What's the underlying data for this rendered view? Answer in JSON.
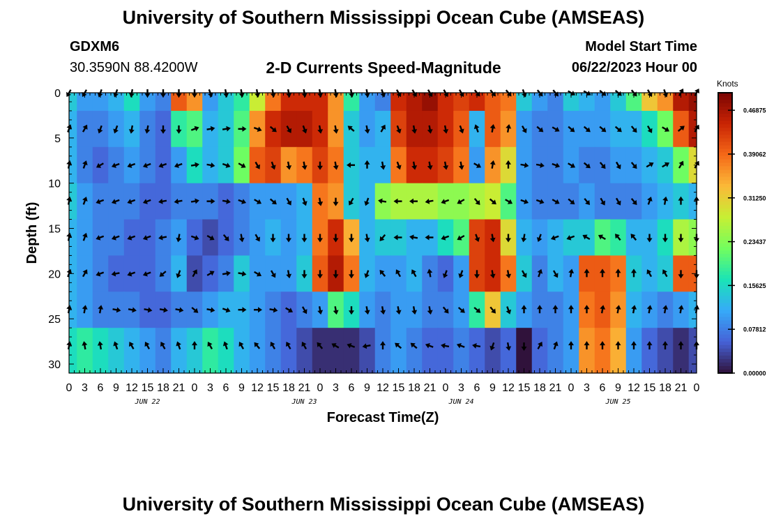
{
  "page": {
    "top_title": "University of Southern Mississippi Ocean Cube (AMSEAS)",
    "bottom_title": "University of Southern Mississippi Ocean Cube (AMSEAS)",
    "station_id": "GDXM6",
    "station_coords": "30.3590N  88.4200W",
    "chart_title": "2-D Currents Speed-Magnitude",
    "model_start_label": "Model Start Time",
    "model_start_value": "06/22/2023 Hour 00"
  },
  "colors": {
    "colormap": [
      "#30123b",
      "#4662d7",
      "#36aaf9",
      "#1ae4b6",
      "#72fe5e",
      "#c7ef34",
      "#fbb938",
      "#f56918",
      "#c92404",
      "#7a0403"
    ],
    "arrow": "#000000",
    "background": "#ffffff"
  },
  "chart_data": {
    "type": "heatmap",
    "title": "2-D Currents Speed-Magnitude",
    "xlabel": "Forecast Time(Z)",
    "ylabel": "Depth (ft)",
    "x_hours": [
      0,
      3,
      6,
      9,
      12,
      15,
      18,
      21,
      24,
      27,
      30,
      33,
      36,
      39,
      42,
      45,
      48,
      51,
      54,
      57,
      60,
      63,
      66,
      69,
      72,
      75,
      78,
      81,
      84,
      87,
      90,
      93,
      96,
      99,
      102,
      105,
      108,
      111,
      114,
      117,
      120
    ],
    "x_tick_labels": [
      "0",
      "3",
      "6",
      "9",
      "12",
      "15",
      "18",
      "21",
      "0",
      "3",
      "6",
      "9",
      "12",
      "15",
      "18",
      "21",
      "0",
      "3",
      "6",
      "9",
      "12",
      "15",
      "18",
      "21",
      "0",
      "3",
      "6",
      "9",
      "12",
      "15",
      "18",
      "21",
      "0",
      "3",
      "6",
      "9",
      "12",
      "15",
      "18",
      "21",
      "0"
    ],
    "date_labels": [
      {
        "hour": 15,
        "text": "JUN 22"
      },
      {
        "hour": 45,
        "text": "JUN 23"
      },
      {
        "hour": 75,
        "text": "JUN 24"
      },
      {
        "hour": 105,
        "text": "JUN 25"
      }
    ],
    "y_depths_ft": [
      0,
      4,
      8,
      12,
      16,
      20,
      24,
      28
    ],
    "y_ticks": [
      0,
      5,
      10,
      15,
      20,
      25,
      30
    ],
    "y_range": [
      0,
      31
    ],
    "colorbar": {
      "unit": "Knots",
      "range": [
        0,
        0.5
      ],
      "ticks": [
        0.0,
        0.078125,
        0.15625,
        0.234375,
        0.3125,
        0.390625,
        0.46875
      ],
      "tick_labels": [
        "0.00000",
        "0.07812",
        "0.15625",
        "0.23437",
        "0.31250",
        "0.39062",
        "0.46875"
      ]
    },
    "speed_knots": [
      [
        0.14,
        0.1,
        0.1,
        0.12,
        0.16,
        0.1,
        0.08,
        0.4,
        0.36,
        0.1,
        0.14,
        0.18,
        0.28,
        0.38,
        0.44,
        0.44,
        0.44,
        0.36,
        0.18,
        0.1,
        0.08,
        0.44,
        0.46,
        0.48,
        0.44,
        0.42,
        0.44,
        0.4,
        0.38,
        0.14,
        0.1,
        0.08,
        0.14,
        0.12,
        0.1,
        0.14,
        0.2,
        0.32,
        0.36,
        0.46,
        0.48
      ],
      [
        0.12,
        0.08,
        0.08,
        0.1,
        0.12,
        0.08,
        0.06,
        0.18,
        0.2,
        0.12,
        0.14,
        0.2,
        0.36,
        0.44,
        0.46,
        0.46,
        0.44,
        0.36,
        0.14,
        0.1,
        0.12,
        0.42,
        0.46,
        0.46,
        0.44,
        0.4,
        0.12,
        0.4,
        0.36,
        0.1,
        0.08,
        0.08,
        0.1,
        0.1,
        0.1,
        0.12,
        0.12,
        0.16,
        0.22,
        0.4,
        0.46
      ],
      [
        0.12,
        0.08,
        0.06,
        0.08,
        0.1,
        0.08,
        0.06,
        0.1,
        0.16,
        0.12,
        0.14,
        0.22,
        0.4,
        0.42,
        0.36,
        0.38,
        0.42,
        0.38,
        0.14,
        0.12,
        0.12,
        0.38,
        0.44,
        0.44,
        0.42,
        0.38,
        0.1,
        0.36,
        0.3,
        0.1,
        0.08,
        0.08,
        0.1,
        0.08,
        0.08,
        0.1,
        0.1,
        0.12,
        0.14,
        0.22,
        0.3
      ],
      [
        0.14,
        0.1,
        0.08,
        0.08,
        0.08,
        0.06,
        0.06,
        0.08,
        0.08,
        0.08,
        0.06,
        0.08,
        0.1,
        0.1,
        0.1,
        0.12,
        0.38,
        0.36,
        0.14,
        0.12,
        0.24,
        0.26,
        0.26,
        0.26,
        0.24,
        0.24,
        0.26,
        0.28,
        0.2,
        0.1,
        0.08,
        0.08,
        0.08,
        0.1,
        0.08,
        0.08,
        0.08,
        0.1,
        0.12,
        0.14,
        0.12
      ],
      [
        0.12,
        0.1,
        0.08,
        0.08,
        0.06,
        0.06,
        0.08,
        0.1,
        0.06,
        0.04,
        0.06,
        0.08,
        0.1,
        0.12,
        0.1,
        0.12,
        0.38,
        0.44,
        0.34,
        0.12,
        0.14,
        0.14,
        0.12,
        0.12,
        0.16,
        0.2,
        0.42,
        0.44,
        0.3,
        0.12,
        0.1,
        0.12,
        0.14,
        0.14,
        0.2,
        0.18,
        0.12,
        0.12,
        0.16,
        0.26,
        0.24
      ],
      [
        0.12,
        0.1,
        0.08,
        0.06,
        0.06,
        0.06,
        0.08,
        0.12,
        0.04,
        0.06,
        0.08,
        0.14,
        0.1,
        0.1,
        0.1,
        0.14,
        0.4,
        0.46,
        0.38,
        0.12,
        0.1,
        0.1,
        0.12,
        0.08,
        0.06,
        0.1,
        0.42,
        0.44,
        0.38,
        0.14,
        0.08,
        0.12,
        0.1,
        0.4,
        0.4,
        0.38,
        0.14,
        0.12,
        0.14,
        0.4,
        0.4
      ],
      [
        0.12,
        0.1,
        0.08,
        0.08,
        0.08,
        0.06,
        0.06,
        0.08,
        0.08,
        0.1,
        0.12,
        0.12,
        0.1,
        0.08,
        0.06,
        0.08,
        0.1,
        0.2,
        0.16,
        0.1,
        0.08,
        0.1,
        0.1,
        0.08,
        0.08,
        0.1,
        0.18,
        0.32,
        0.14,
        0.1,
        0.08,
        0.08,
        0.1,
        0.38,
        0.4,
        0.36,
        0.12,
        0.1,
        0.08,
        0.1,
        0.12
      ],
      [
        0.16,
        0.18,
        0.16,
        0.14,
        0.12,
        0.1,
        0.08,
        0.12,
        0.14,
        0.18,
        0.16,
        0.12,
        0.1,
        0.08,
        0.06,
        0.04,
        0.02,
        0.02,
        0.02,
        0.04,
        0.08,
        0.1,
        0.08,
        0.06,
        0.06,
        0.08,
        0.06,
        0.04,
        0.06,
        0.0,
        0.06,
        0.08,
        0.1,
        0.36,
        0.38,
        0.34,
        0.1,
        0.06,
        0.04,
        0.02,
        0.04
      ]
    ],
    "direction_deg": [
      [
        210,
        210,
        200,
        200,
        190,
        180,
        180,
        180,
        180,
        160,
        170,
        170,
        170,
        170,
        170,
        170,
        170,
        170,
        170,
        170,
        160,
        150,
        150,
        150,
        150,
        150,
        140,
        140,
        140,
        160,
        140,
        140,
        120,
        120,
        130,
        130,
        140,
        150,
        160,
        30,
        30
      ],
      [
        20,
        30,
        200,
        200,
        190,
        190,
        180,
        180,
        70,
        80,
        80,
        90,
        110,
        130,
        150,
        160,
        170,
        170,
        310,
        170,
        30,
        160,
        170,
        170,
        170,
        160,
        340,
        10,
        10,
        150,
        130,
        120,
        130,
        130,
        130,
        130,
        140,
        150,
        120,
        50,
        30
      ],
      [
        10,
        20,
        240,
        250,
        250,
        250,
        250,
        250,
        80,
        100,
        110,
        120,
        150,
        160,
        170,
        170,
        180,
        170,
        270,
        0,
        170,
        160,
        170,
        170,
        170,
        170,
        120,
        10,
        0,
        100,
        100,
        110,
        120,
        130,
        140,
        150,
        140,
        60,
        60,
        30,
        30
      ],
      [
        10,
        20,
        250,
        250,
        250,
        250,
        260,
        260,
        80,
        90,
        100,
        110,
        120,
        130,
        150,
        160,
        170,
        180,
        210,
        200,
        280,
        270,
        270,
        260,
        250,
        240,
        140,
        130,
        120,
        110,
        110,
        120,
        130,
        140,
        150,
        150,
        140,
        20,
        10,
        0,
        0
      ],
      [
        10,
        20,
        250,
        250,
        250,
        250,
        260,
        190,
        110,
        120,
        140,
        170,
        150,
        180,
        180,
        180,
        180,
        180,
        180,
        170,
        220,
        270,
        280,
        270,
        250,
        240,
        160,
        170,
        180,
        190,
        200,
        250,
        250,
        300,
        300,
        320,
        320,
        180,
        180,
        180,
        180
      ],
      [
        20,
        30,
        250,
        260,
        250,
        250,
        230,
        200,
        30,
        60,
        80,
        100,
        120,
        150,
        170,
        180,
        180,
        180,
        180,
        200,
        320,
        330,
        330,
        350,
        200,
        200,
        180,
        170,
        170,
        150,
        20,
        150,
        10,
        0,
        0,
        0,
        0,
        330,
        330,
        180,
        180
      ],
      [
        10,
        10,
        10,
        100,
        100,
        100,
        100,
        100,
        130,
        100,
        110,
        90,
        90,
        100,
        120,
        150,
        170,
        170,
        180,
        170,
        170,
        170,
        170,
        170,
        140,
        130,
        130,
        140,
        160,
        0,
        0,
        0,
        0,
        0,
        10,
        10,
        10,
        10,
        10,
        10,
        10
      ],
      [
        10,
        350,
        350,
        340,
        330,
        330,
        330,
        340,
        0,
        330,
        340,
        330,
        320,
        330,
        330,
        330,
        320,
        300,
        290,
        260,
        0,
        310,
        310,
        290,
        280,
        290,
        280,
        200,
        170,
        180,
        30,
        20,
        0,
        0,
        0,
        0,
        0,
        0,
        0,
        0,
        0
      ]
    ]
  }
}
